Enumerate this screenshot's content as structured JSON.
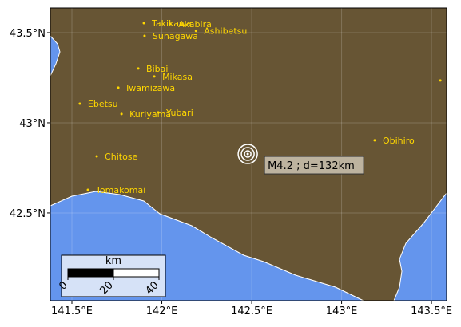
{
  "map": {
    "xlim": [
      141.38,
      143.584
    ],
    "ylim": [
      42.013,
      43.637
    ],
    "xticks": [
      {
        "value": 141.5,
        "label": "141.5°E"
      },
      {
        "value": 142,
        "label": "142°E"
      },
      {
        "value": 142.5,
        "label": "142.5°E"
      },
      {
        "value": 143,
        "label": "143°E"
      },
      {
        "value": 143.5,
        "label": "143.5°E"
      }
    ],
    "yticks": [
      {
        "value": 42.5,
        "label": "42.5°N"
      },
      {
        "value": 43,
        "label": "43°N"
      },
      {
        "value": 43.5,
        "label": "43.5°N"
      }
    ],
    "cities": [
      {
        "name": "Takikawa",
        "lon": 141.9,
        "lat": 43.553
      },
      {
        "name": "Akabira",
        "lon": 142.047,
        "lat": 43.549
      },
      {
        "name": "Sunagawa",
        "lon": 141.904,
        "lat": 43.482
      },
      {
        "name": "Ashibetsu",
        "lon": 142.19,
        "lat": 43.51
      },
      {
        "name": "Bibai",
        "lon": 141.869,
        "lat": 43.301
      },
      {
        "name": "Mikasa",
        "lon": 141.958,
        "lat": 43.257
      },
      {
        "name": "Iwamizawa",
        "lon": 141.758,
        "lat": 43.195
      },
      {
        "name": "Ebetsu",
        "lon": 141.544,
        "lat": 43.106
      },
      {
        "name": "Kuriyama",
        "lon": 141.776,
        "lat": 43.049
      },
      {
        "name": "Yubari",
        "lon": 141.98,
        "lat": 43.058
      },
      {
        "name": "Chitose",
        "lon": 141.638,
        "lat": 42.814
      },
      {
        "name": "Tomakomai",
        "lon": 141.589,
        "lat": 42.628
      },
      {
        "name": "Obihiro",
        "lon": 143.184,
        "lat": 42.903
      },
      {
        "name": null,
        "lon": 143.549,
        "lat": 43.235
      }
    ],
    "epicenter": {
      "lon": 142.478,
      "lat": 42.827,
      "label": "M4.2 ; d=132km"
    },
    "scale_bar": {
      "unit": "km",
      "ticks": [
        0,
        20,
        40
      ]
    }
  }
}
